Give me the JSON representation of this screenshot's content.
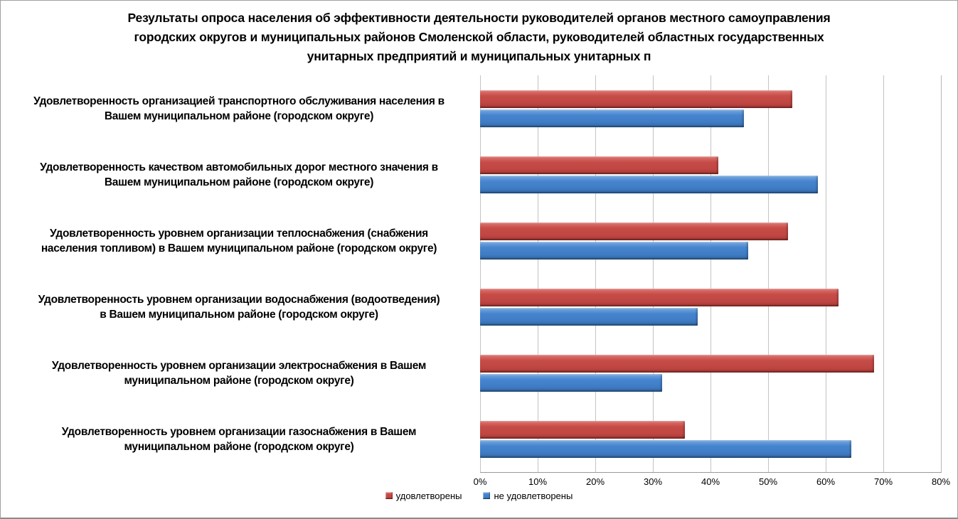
{
  "chart_data": {
    "type": "bar",
    "orientation": "horizontal",
    "title": "Результаты опроса населения об эффективности деятельности руководителей органов местного самоуправления\nгородских округов и муниципальных районов Смоленской области, руководителей областных государственных\nунитарных предприятий и муниципальных унитарных п",
    "categories": [
      "Удовлетворенность организацией транспортного обслуживания населения в\nВашем муниципальном районе (городском округе)",
      "Удовлетворенность качеством автомобильных дорог местного значения в\nВашем муниципальном районе (городском округе)",
      "Удовлетворенность уровнем организации теплоснабжения (снабжения\nнаселения топливом) в Вашем муниципальном районе (городском округе)",
      "Удовлетворенность уровнем организации водоснабжения (водоотведения)\nв Вашем муниципальном районе (городском округе)",
      "Удовлетворенность уровнем организации электроснабжения в Вашем\nмуниципальном районе (городском округе)",
      "Удовлетворенность уровнем организации газоснабжения в Вашем\nмуниципальном районе (городском округе)"
    ],
    "series": [
      {
        "name": "удовлетворены",
        "color": "#C04A46",
        "values": [
          54.2,
          41.3,
          53.4,
          62.2,
          68.4,
          35.5
        ]
      },
      {
        "name": "не удовлетворены",
        "color": "#3D7CC8",
        "values": [
          45.8,
          58.7,
          46.6,
          37.8,
          31.6,
          64.5
        ]
      }
    ],
    "x_axis": {
      "min": 0,
      "max": 80,
      "tick_step": 10,
      "ticks": [
        "0%",
        "10%",
        "20%",
        "30%",
        "40%",
        "50%",
        "60%",
        "70%",
        "80%"
      ]
    },
    "xlabel": "",
    "ylabel": "",
    "grid": "vertical",
    "gridline_color": "#C3C3C3",
    "legend_position": "bottom"
  }
}
